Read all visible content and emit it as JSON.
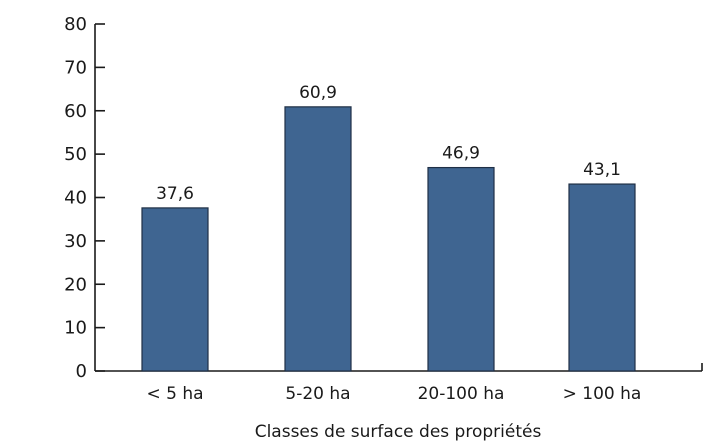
{
  "chart_data": {
    "type": "bar",
    "title": "",
    "xlabel": "Classes de surface des propriétés",
    "ylabel": "",
    "categories": [
      "< 5 ha",
      "5-20 ha",
      "20-100 ha",
      "> 100 ha"
    ],
    "values": [
      37.6,
      60.9,
      46.9,
      43.1
    ],
    "value_labels": [
      "37,6",
      "60,9",
      "46,9",
      "43,1"
    ],
    "ylim": [
      0,
      80
    ],
    "yticks": [
      0,
      10,
      20,
      30,
      40,
      50,
      60,
      70,
      80
    ],
    "grid": false,
    "legend": "none",
    "colors": {
      "bar": "#3f6591",
      "bar_edge": "#1f2f45",
      "axis": "#1a1a1a",
      "text": "#1a1a1a"
    }
  }
}
